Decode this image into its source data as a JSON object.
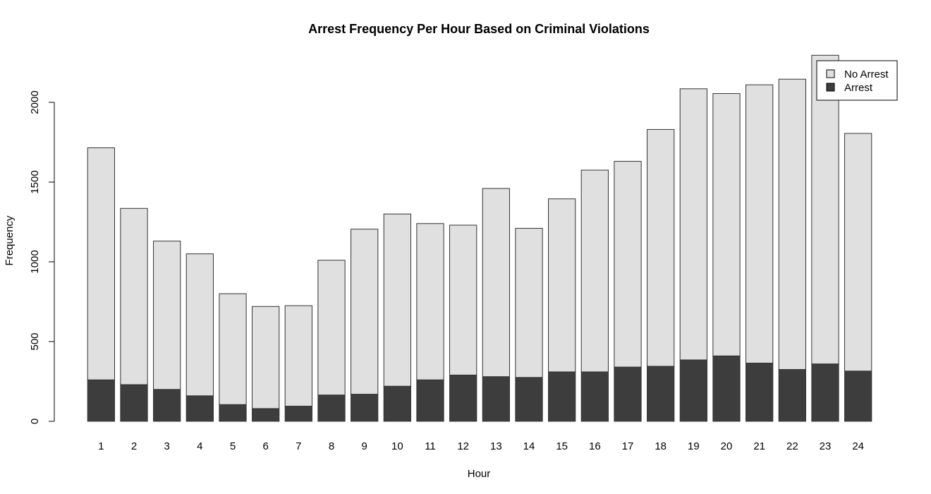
{
  "chart_data": {
    "type": "bar",
    "stacked": true,
    "title": "Arrest Frequency Per Hour Based on Criminal Violations",
    "xlabel": "Hour",
    "ylabel": "Frequency",
    "categories": [
      "1",
      "2",
      "3",
      "4",
      "5",
      "6",
      "7",
      "8",
      "9",
      "10",
      "11",
      "12",
      "13",
      "14",
      "15",
      "16",
      "17",
      "18",
      "19",
      "20",
      "21",
      "22",
      "23",
      "24"
    ],
    "series": [
      {
        "name": "Arrest",
        "color": "#3d3d3d",
        "values": [
          260,
          230,
          200,
          160,
          105,
          80,
          95,
          165,
          170,
          220,
          260,
          290,
          280,
          275,
          310,
          310,
          340,
          345,
          385,
          410,
          365,
          325,
          360,
          315
        ]
      },
      {
        "name": "No Arrest",
        "color": "#e0e0e0",
        "values": [
          1455,
          1105,
          930,
          890,
          695,
          640,
          630,
          845,
          1035,
          1080,
          980,
          940,
          1180,
          935,
          1085,
          1265,
          1290,
          1485,
          1700,
          1645,
          1745,
          1820,
          1935,
          1490
        ]
      }
    ],
    "yticks": [
      0,
      500,
      1000,
      1500,
      2000
    ],
    "ylim": [
      0,
      2200
    ],
    "legend": {
      "position": "top-right",
      "entries": [
        {
          "label": "No Arrest",
          "color": "#e0e0e0"
        },
        {
          "label": "Arrest",
          "color": "#3d3d3d"
        }
      ]
    },
    "grid": false
  }
}
